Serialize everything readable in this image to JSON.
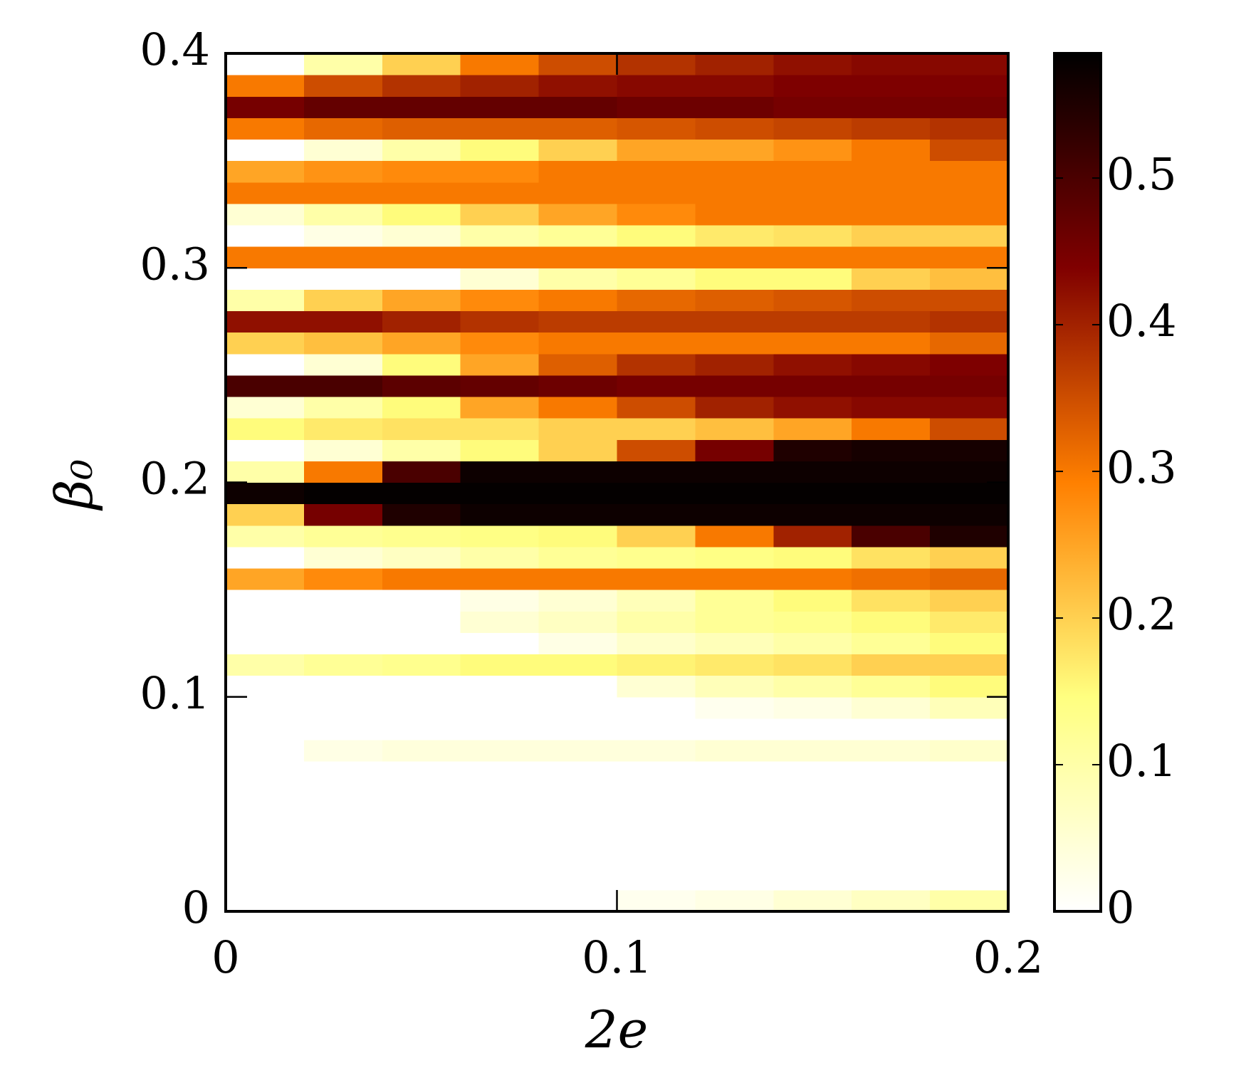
{
  "chart_data": {
    "type": "heatmap",
    "xlabel": "2e",
    "ylabel": "β₀",
    "colormap": "afmhot_r",
    "xlim": [
      0,
      0.2
    ],
    "ylim": [
      0,
      0.4
    ],
    "xticks": [
      0,
      0.1,
      0.2
    ],
    "yticks": [
      0,
      0.1,
      0.2,
      0.3,
      0.4
    ],
    "zlim": [
      0,
      0.585
    ],
    "zticks": [
      0,
      0.1,
      0.2,
      0.3,
      0.4,
      0.5
    ],
    "x": [
      0.01,
      0.03,
      0.05,
      0.07,
      0.09,
      0.11,
      0.13,
      0.15,
      0.17,
      0.19
    ],
    "y": [
      0.005,
      0.015,
      0.025,
      0.035,
      0.045,
      0.055,
      0.065,
      0.075,
      0.085,
      0.095,
      0.105,
      0.115,
      0.125,
      0.135,
      0.145,
      0.155,
      0.165,
      0.175,
      0.185,
      0.195,
      0.205,
      0.215,
      0.225,
      0.235,
      0.245,
      0.255,
      0.265,
      0.275,
      0.285,
      0.295,
      0.305,
      0.315,
      0.325,
      0.335,
      0.345,
      0.355,
      0.365,
      0.375,
      0.385,
      0.395
    ],
    "z": [
      [
        0,
        0,
        0,
        0,
        0,
        0.02,
        0.03,
        0.05,
        0.07,
        0.1
      ],
      [
        0,
        0,
        0,
        0,
        0,
        0,
        0,
        0,
        0,
        0
      ],
      [
        0,
        0,
        0,
        0,
        0,
        0,
        0,
        0,
        0,
        0
      ],
      [
        0,
        0,
        0,
        0,
        0,
        0,
        0,
        0,
        0,
        0
      ],
      [
        0,
        0,
        0,
        0,
        0,
        0,
        0,
        0,
        0,
        0
      ],
      [
        0,
        0,
        0,
        0,
        0,
        0,
        0,
        0,
        0,
        0
      ],
      [
        0,
        0,
        0,
        0,
        0,
        0,
        0,
        0,
        0,
        0
      ],
      [
        0,
        0.03,
        0.04,
        0.04,
        0.04,
        0.04,
        0.05,
        0.05,
        0.05,
        0.06
      ],
      [
        0,
        0,
        0,
        0,
        0,
        0,
        0,
        0,
        0,
        0
      ],
      [
        0,
        0,
        0,
        0,
        0,
        0,
        0.02,
        0.03,
        0.05,
        0.08
      ],
      [
        0,
        0,
        0,
        0,
        0,
        0.05,
        0.08,
        0.1,
        0.12,
        0.15
      ],
      [
        0.1,
        0.12,
        0.13,
        0.15,
        0.15,
        0.16,
        0.17,
        0.18,
        0.2,
        0.2
      ],
      [
        0,
        0,
        0,
        0,
        0.03,
        0.06,
        0.08,
        0.1,
        0.12,
        0.15
      ],
      [
        0,
        0,
        0,
        0.05,
        0.07,
        0.1,
        0.12,
        0.13,
        0.15,
        0.17
      ],
      [
        0,
        0,
        0,
        0.03,
        0.05,
        0.08,
        0.12,
        0.15,
        0.18,
        0.2
      ],
      [
        0.25,
        0.28,
        0.3,
        0.3,
        0.3,
        0.3,
        0.3,
        0.3,
        0.31,
        0.32
      ],
      [
        0,
        0.05,
        0.07,
        0.1,
        0.12,
        0.13,
        0.14,
        0.15,
        0.18,
        0.2
      ],
      [
        0.1,
        0.12,
        0.13,
        0.14,
        0.15,
        0.2,
        0.3,
        0.4,
        0.5,
        0.55
      ],
      [
        0.2,
        0.45,
        0.55,
        0.57,
        0.57,
        0.57,
        0.57,
        0.57,
        0.57,
        0.57
      ],
      [
        0.57,
        0.58,
        0.58,
        0.58,
        0.58,
        0.58,
        0.58,
        0.58,
        0.58,
        0.58
      ],
      [
        0.1,
        0.3,
        0.5,
        0.57,
        0.57,
        0.57,
        0.57,
        0.57,
        0.57,
        0.57
      ],
      [
        0,
        0.05,
        0.1,
        0.15,
        0.2,
        0.35,
        0.45,
        0.55,
        0.56,
        0.56
      ],
      [
        0.15,
        0.17,
        0.18,
        0.18,
        0.2,
        0.2,
        0.22,
        0.25,
        0.3,
        0.35
      ],
      [
        0.05,
        0.1,
        0.15,
        0.25,
        0.3,
        0.35,
        0.4,
        0.42,
        0.43,
        0.43
      ],
      [
        0.5,
        0.5,
        0.48,
        0.47,
        0.46,
        0.45,
        0.45,
        0.45,
        0.45,
        0.45
      ],
      [
        0,
        0.05,
        0.15,
        0.25,
        0.33,
        0.38,
        0.4,
        0.42,
        0.43,
        0.44
      ],
      [
        0.2,
        0.22,
        0.25,
        0.28,
        0.3,
        0.3,
        0.3,
        0.3,
        0.3,
        0.32
      ],
      [
        0.42,
        0.42,
        0.4,
        0.38,
        0.37,
        0.37,
        0.37,
        0.37,
        0.37,
        0.38
      ],
      [
        0.1,
        0.2,
        0.25,
        0.28,
        0.3,
        0.32,
        0.33,
        0.34,
        0.35,
        0.35
      ],
      [
        0,
        0,
        0,
        0.05,
        0.1,
        0.12,
        0.15,
        0.15,
        0.2,
        0.22
      ],
      [
        0.3,
        0.3,
        0.3,
        0.3,
        0.3,
        0.3,
        0.3,
        0.3,
        0.3,
        0.3
      ],
      [
        0,
        0.03,
        0.05,
        0.1,
        0.12,
        0.15,
        0.17,
        0.18,
        0.2,
        0.2
      ],
      [
        0.05,
        0.1,
        0.15,
        0.2,
        0.25,
        0.28,
        0.3,
        0.3,
        0.3,
        0.3
      ],
      [
        0.3,
        0.3,
        0.3,
        0.3,
        0.3,
        0.3,
        0.3,
        0.3,
        0.3,
        0.3
      ],
      [
        0.25,
        0.27,
        0.28,
        0.28,
        0.3,
        0.3,
        0.3,
        0.3,
        0.3,
        0.3
      ],
      [
        0,
        0.05,
        0.1,
        0.15,
        0.2,
        0.25,
        0.25,
        0.27,
        0.3,
        0.35
      ],
      [
        0.3,
        0.32,
        0.33,
        0.33,
        0.33,
        0.34,
        0.35,
        0.36,
        0.37,
        0.38
      ],
      [
        0.45,
        0.47,
        0.47,
        0.47,
        0.47,
        0.46,
        0.46,
        0.45,
        0.45,
        0.45
      ],
      [
        0.3,
        0.35,
        0.38,
        0.4,
        0.42,
        0.43,
        0.43,
        0.44,
        0.44,
        0.44
      ],
      [
        0,
        0.1,
        0.2,
        0.3,
        0.35,
        0.38,
        0.4,
        0.42,
        0.43,
        0.43
      ]
    ]
  }
}
